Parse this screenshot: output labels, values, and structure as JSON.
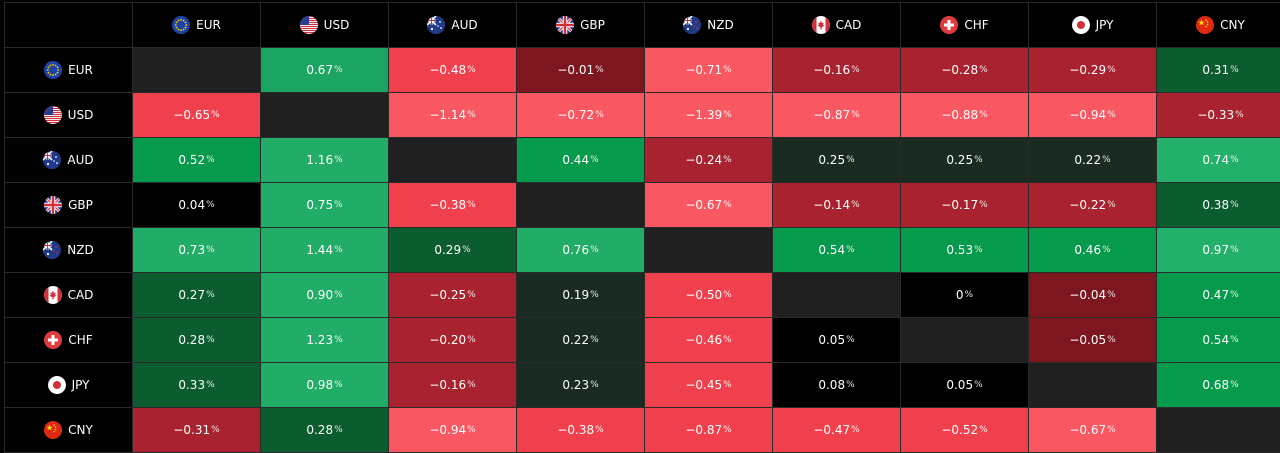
{
  "currencies": [
    {
      "code": "EUR",
      "flag_icon": "eu-flag-icon"
    },
    {
      "code": "USD",
      "flag_icon": "us-flag-icon"
    },
    {
      "code": "AUD",
      "flag_icon": "au-flag-icon"
    },
    {
      "code": "GBP",
      "flag_icon": "gb-flag-icon"
    },
    {
      "code": "NZD",
      "flag_icon": "nz-flag-icon"
    },
    {
      "code": "CAD",
      "flag_icon": "ca-flag-icon"
    },
    {
      "code": "CHF",
      "flag_icon": "ch-flag-icon"
    },
    {
      "code": "JPY",
      "flag_icon": "jp-flag-icon"
    },
    {
      "code": "CNY",
      "flag_icon": "cn-flag-icon"
    }
  ],
  "unit": "%",
  "matrix": [
    [
      null,
      "0.67",
      "−0.48",
      "−0.01",
      "−0.71",
      "−0.16",
      "−0.28",
      "−0.29",
      "0.31"
    ],
    [
      "−0.65",
      null,
      "−1.14",
      "−0.72",
      "−1.39",
      "−0.87",
      "−0.88",
      "−0.94",
      "−0.33"
    ],
    [
      "0.52",
      "1.16",
      null,
      "0.44",
      "−0.24",
      "0.25",
      "0.25",
      "0.22",
      "0.74"
    ],
    [
      "0.04",
      "0.75",
      "−0.38",
      null,
      "−0.67",
      "−0.14",
      "−0.17",
      "−0.22",
      "0.38"
    ],
    [
      "0.73",
      "1.44",
      "0.29",
      "0.76",
      null,
      "0.54",
      "0.53",
      "0.46",
      "0.97"
    ],
    [
      "0.27",
      "0.90",
      "−0.25",
      "0.19",
      "−0.50",
      null,
      "0",
      "−0.04",
      "0.47"
    ],
    [
      "0.28",
      "1.23",
      "−0.20",
      "0.22",
      "−0.46",
      "0.05",
      null,
      "−0.05",
      "0.54"
    ],
    [
      "0.33",
      "0.98",
      "−0.16",
      "0.23",
      "−0.45",
      "0.08",
      "0.05",
      null,
      "0.68"
    ],
    [
      "−0.31",
      "0.28",
      "−0.94",
      "−0.38",
      "−0.87",
      "−0.47",
      "−0.52",
      "−0.67",
      null
    ]
  ],
  "cell_colors": [
    [
      null,
      "#1ca462",
      "#f0404d",
      "#7e1620",
      "#f95862",
      "#a8232f",
      "#a8232f",
      "#a8232f",
      "#0b5c2e"
    ],
    [
      "#f0404d",
      null,
      "#f95862",
      "#f95862",
      "#f95862",
      "#f95862",
      "#f95862",
      "#f95862",
      "#a8232f"
    ],
    [
      "#069a4c",
      "#21ad67",
      null,
      "#069a4c",
      "#a8232f",
      "#1a2c22",
      "#1a2c22",
      "#1a2c22",
      "#22b06a"
    ],
    [
      "#000000",
      "#21ad67",
      "#f0404d",
      null,
      "#f95862",
      "#a8232f",
      "#a8232f",
      "#a8232f",
      "#0b5c2e"
    ],
    [
      "#21ad67",
      "#21ad67",
      "#0b5c2e",
      "#21ad67",
      null,
      "#069a4c",
      "#069a4c",
      "#069a4c",
      "#22b06a"
    ],
    [
      "#0b5c2e",
      "#21ad67",
      "#a8232f",
      "#1a2c22",
      "#f0404d",
      null,
      "#000000",
      "#7e1620",
      "#069a4c"
    ],
    [
      "#0b5c2e",
      "#21ad67",
      "#a8232f",
      "#1a2c22",
      "#f0404d",
      "#000000",
      null,
      "#7e1620",
      "#069a4c"
    ],
    [
      "#0b5c2e",
      "#21ad67",
      "#a8232f",
      "#1a2c22",
      "#f0404d",
      "#000000",
      "#000000",
      null,
      "#069a4c"
    ],
    [
      "#a8232f",
      "#0b5c2e",
      "#f95862",
      "#f0404d",
      "#f0404d",
      "#f0404d",
      "#f0404d",
      "#f95862",
      null
    ]
  ]
}
